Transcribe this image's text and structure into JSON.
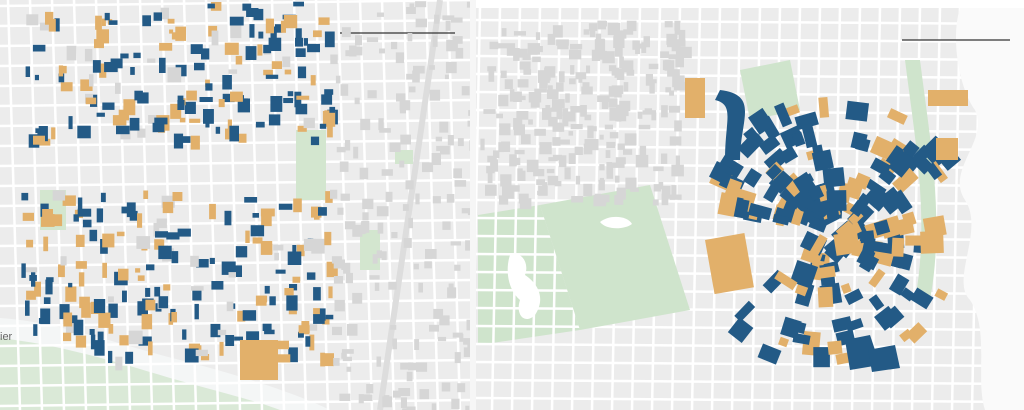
{
  "left_map": {
    "river_label": "ier"
  }
}
